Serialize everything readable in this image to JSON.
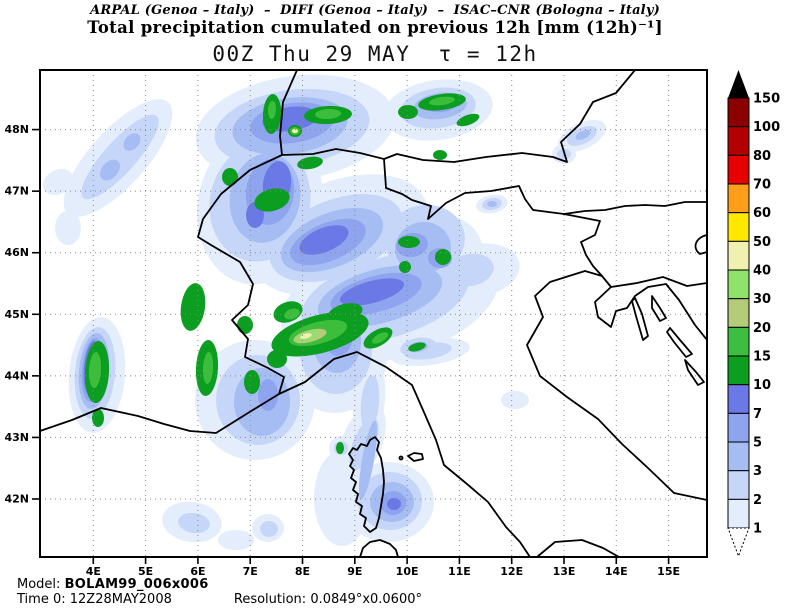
{
  "header": {
    "institutions": "ARPAL (Genoa – Italy)  –  DIFI (Genoa – Italy)  –  ISAC–CNR (Bologna – Italy)",
    "title": "Total precipitation cumulated on previous 12h [mm (12h)⁻¹]",
    "valid_time": "00Z Thu 29 MAY  τ = 12h"
  },
  "map": {
    "x_tick_labels": [
      "4E",
      "5E",
      "6E",
      "7E",
      "8E",
      "9E",
      "10E",
      "11E",
      "12E",
      "13E",
      "14E",
      "15E"
    ],
    "y_tick_labels": [
      "48N",
      "47N",
      "46N",
      "45N",
      "44N",
      "43N",
      "42N"
    ],
    "grid_color": "#8a8a8a",
    "coast_color": "#000000"
  },
  "colorbar": {
    "tick_labels": [
      "150",
      "100",
      "80",
      "70",
      "60",
      "50",
      "40",
      "30",
      "20",
      "15",
      "10",
      "7",
      "5",
      "3",
      "2",
      "1"
    ],
    "segment_colors_top_to_bottom": [
      "#8B0000",
      "#B20000",
      "#E60000",
      "#FF9E1A",
      "#FFE800",
      "#F0F0B0",
      "#8FE36B",
      "#B4CC7A",
      "#3EBE3E",
      "#0C9E20",
      "#6B79E6",
      "#8EA4EF",
      "#A6BDF3",
      "#C6D6F8",
      "#E4EDFB"
    ],
    "over_arrow_color": "#000000",
    "under_arrow_color": "#FFFFFF",
    "fill_by_level": {
      "1": "#E4EDFB",
      "2": "#C6D6F8",
      "3": "#A6BDF3",
      "5": "#8EA4EF",
      "7": "#6B79E6",
      "10": "#0C9E20",
      "15": "#3CBE3C",
      "20": "#B4CC7A",
      "30": "#8FE36B",
      "40": "#F0F0B0"
    }
  },
  "footer": {
    "model_label": "Model:",
    "model_value": "BOLAM99_006x006",
    "time_label": "Time 0:",
    "time_value": "12Z28MAY2008",
    "resolution_label": "Resolution:",
    "resolution_value": "0.0849°x0.0600°"
  }
}
